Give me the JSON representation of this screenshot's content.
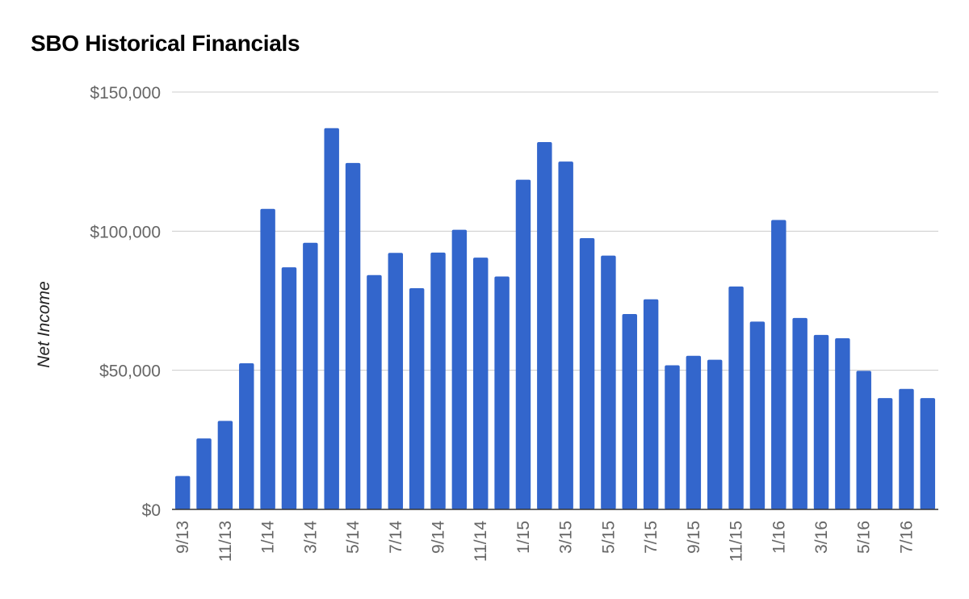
{
  "chart_data": {
    "type": "bar",
    "title": "SBO Historical Financials",
    "xlabel": "",
    "ylabel": "Net Income",
    "ylim": [
      0,
      150000
    ],
    "yticks": [
      0,
      50000,
      100000,
      150000
    ],
    "ytick_labels": [
      "$0",
      "$50,000",
      "$100,000",
      "$150,000"
    ],
    "grid": true,
    "legend": "none",
    "categories": [
      "9/13",
      "10/13",
      "11/13",
      "12/13",
      "1/14",
      "2/14",
      "3/14",
      "4/14",
      "5/14",
      "6/14",
      "7/14",
      "8/14",
      "9/14",
      "10/14",
      "11/14",
      "12/14",
      "1/15",
      "2/15",
      "3/15",
      "4/15",
      "5/15",
      "6/15",
      "7/15",
      "8/15",
      "9/15",
      "10/15",
      "11/15",
      "12/15",
      "1/16",
      "2/16",
      "3/16",
      "4/16",
      "5/16",
      "6/16",
      "7/16",
      "8/16"
    ],
    "xtick_labels_shown": [
      "9/13",
      "11/13",
      "1/14",
      "3/14",
      "5/14",
      "7/14",
      "9/14",
      "11/14",
      "1/15",
      "3/15",
      "5/15",
      "7/15",
      "9/15",
      "11/15",
      "1/16",
      "3/16",
      "5/16",
      "7/16"
    ],
    "values": [
      12000,
      25500,
      31800,
      52500,
      108000,
      87000,
      95800,
      137000,
      124500,
      84200,
      92200,
      79500,
      92300,
      100500,
      90500,
      83700,
      118500,
      132000,
      125000,
      97500,
      91200,
      70200,
      75500,
      51800,
      55200,
      53800,
      80100,
      67500,
      104000,
      68800,
      62700,
      61500,
      49800,
      40000,
      43300,
      40000
    ],
    "colors": {
      "bar": "#3366cc",
      "grid": "#cccccc",
      "baseline": "#333333"
    }
  }
}
